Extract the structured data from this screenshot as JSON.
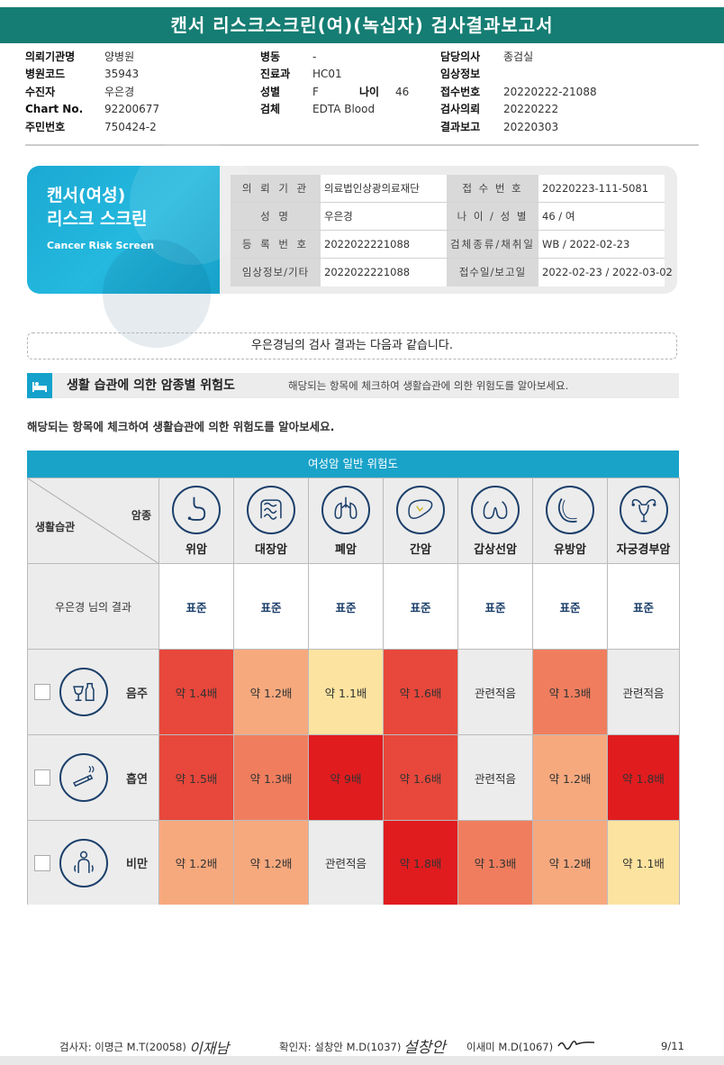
{
  "title": "캔서 리스크스크린(여)(녹십자) 검사결과보고서",
  "meta": {
    "col1": [
      {
        "label": "의뢰기관명",
        "value": "양병원"
      },
      {
        "label": "병원코드",
        "value": "35943"
      },
      {
        "label": "수진자",
        "value": "우은경"
      },
      {
        "label": "Chart No.",
        "value": "92200677"
      },
      {
        "label": "주민번호",
        "value": "750424-2"
      }
    ],
    "col2": [
      {
        "label": "병동",
        "value": "-"
      },
      {
        "label": "진료과",
        "value": "HC01"
      },
      {
        "label": "성별",
        "value": "F"
      },
      {
        "label": "검체",
        "value": "EDTA Blood"
      }
    ],
    "age_label": "나이",
    "age_value": "46",
    "col3": [
      {
        "label": "담당의사",
        "value": "종검실"
      },
      {
        "label": "임상정보",
        "value": ""
      },
      {
        "label": "접수번호",
        "value": "20220222-21088"
      },
      {
        "label": "검사의뢰",
        "value": "20220222"
      },
      {
        "label": "결과보고",
        "value": "20220303"
      }
    ]
  },
  "banner": {
    "title_line1": "캔서(여성)",
    "title_line2": "리스크 스크린",
    "subtitle": "Cancer Risk Screen",
    "rows": [
      {
        "k1": "의 뢰 기 관",
        "v1": "의료법인상광의료재단",
        "k2": "접 수 번 호",
        "v2": "20220223-111-5081"
      },
      {
        "k1": "성        명",
        "v1": "우은경",
        "k2": "나 이 / 성 별",
        "v2": "46 / 여"
      },
      {
        "k1": "등 록 번 호",
        "v1": "2022022221088",
        "k2": "검체종류/채취일",
        "v2": "WB / 2022-02-23"
      },
      {
        "k1": "임상정보/기타",
        "v1": "2022022221088",
        "k2": "접수일/보고일",
        "v2": "2022-02-23 / 2022-03-02"
      }
    ]
  },
  "summary": "우은경님의 검사 결과는 다음과 같습니다.",
  "section": {
    "heading": "생활 습관에 의한 암종별 위험도",
    "desc": "해당되는 항목에 체크하여 생활습관에 의한 위험도를 알아보세요."
  },
  "instruction": "해당되는 항목에 체크하여 생활습관에 의한 위험도를 알아보세요.",
  "table": {
    "title": "여성암 일반 위험도",
    "corner_top": "암종",
    "corner_bottom": "생활습관",
    "cancers": [
      {
        "label": "위암",
        "icon": "stomach-icon"
      },
      {
        "label": "대장암",
        "icon": "colon-icon"
      },
      {
        "label": "폐암",
        "icon": "lung-icon"
      },
      {
        "label": "간암",
        "icon": "liver-icon"
      },
      {
        "label": "갑상선암",
        "icon": "thyroid-icon"
      },
      {
        "label": "유방암",
        "icon": "breast-icon"
      },
      {
        "label": "자궁경부암",
        "icon": "uterus-icon"
      }
    ],
    "result_label": "우은경 님의 결과",
    "results": [
      "표준",
      "표준",
      "표준",
      "표준",
      "표준",
      "표준",
      "표준"
    ],
    "habits": [
      {
        "label": "음주",
        "icon": "alcohol-icon",
        "values": [
          "약 1.4배",
          "약 1.2배",
          "약 1.1배",
          "약 1.6배",
          "관련적음",
          "약 1.3배",
          "관련적음"
        ],
        "colors": [
          "#e8473b",
          "#f7a97e",
          "#fde3a0",
          "#e8473b",
          "#ececec",
          "#f07e5e",
          "#ececec"
        ]
      },
      {
        "label": "흡연",
        "icon": "smoking-icon",
        "values": [
          "약 1.5배",
          "약 1.3배",
          "약 9배",
          "약 1.6배",
          "관련적음",
          "약 1.2배",
          "약 1.8배"
        ],
        "colors": [
          "#e8473b",
          "#f07e5e",
          "#e01c1f",
          "#e8473b",
          "#ececec",
          "#f7a97e",
          "#e01c1f"
        ]
      },
      {
        "label": "비만",
        "icon": "obesity-icon",
        "values": [
          "약 1.2배",
          "약 1.2배",
          "관련적음",
          "약 1.8배",
          "약 1.3배",
          "약 1.2배",
          "약 1.1배"
        ],
        "colors": [
          "#f7a97e",
          "#f7a97e",
          "#ececec",
          "#e01c1f",
          "#f07e5e",
          "#f7a97e",
          "#fde3a0"
        ]
      }
    ]
  },
  "footer": {
    "inspector": "검사자: 이명근 M.T(20058)",
    "inspector_sig": "이재남",
    "confirmer": "확인자: 설창안 M.D(1037)",
    "confirmer_sig": "설창안",
    "confirmer2": "이새미 M.D(1067)",
    "page": "9/11"
  }
}
